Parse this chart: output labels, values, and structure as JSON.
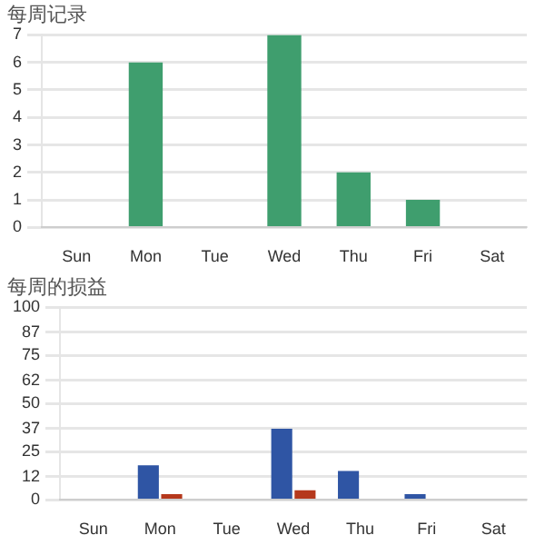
{
  "chart_data": [
    {
      "type": "bar",
      "title": "每周记录",
      "categories": [
        "Sun",
        "Mon",
        "Tue",
        "Wed",
        "Thu",
        "Fri",
        "Sat"
      ],
      "values": [
        0,
        6,
        0,
        7,
        2,
        1,
        0
      ],
      "color": "#3f9e6e",
      "ylim": [
        0,
        7
      ],
      "yticks": [
        0,
        1,
        2,
        3,
        4,
        5,
        6,
        7
      ],
      "grid": "y",
      "legend": false
    },
    {
      "type": "bar",
      "title": "每周的损益",
      "categories": [
        "Sun",
        "Mon",
        "Tue",
        "Wed",
        "Thu",
        "Fri",
        "Sat"
      ],
      "series": [
        {
          "color": "#2f55a4",
          "values": [
            0,
            18,
            0,
            37,
            15,
            3,
            0
          ]
        },
        {
          "color": "#b5381c",
          "values": [
            0,
            3,
            0,
            5,
            0,
            0,
            0
          ]
        }
      ],
      "ylim": [
        0,
        100
      ],
      "yticks": [
        0,
        12,
        25,
        37,
        50,
        62,
        75,
        87,
        100
      ],
      "grid": "y",
      "legend": false
    }
  ]
}
